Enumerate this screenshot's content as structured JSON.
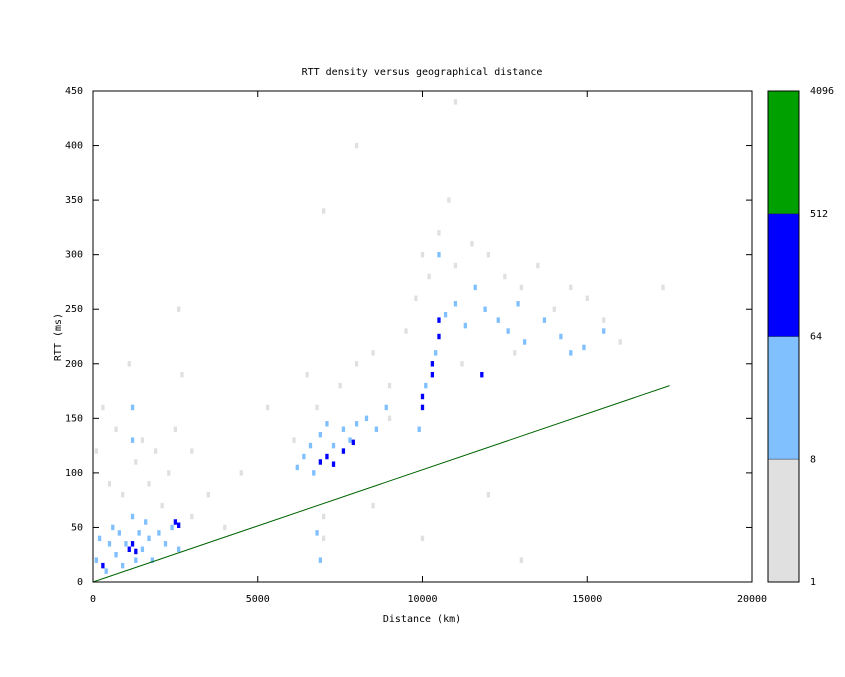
{
  "chart_data": {
    "type": "heatmap",
    "title": "RTT density versus geographical distance",
    "x_label": "Distance (km)",
    "y_label": "RTT (ms)",
    "xlim": [
      0,
      20000
    ],
    "xticks": [
      0,
      5000,
      10000,
      15000,
      20000
    ],
    "ylim": [
      0,
      450
    ],
    "yticks": [
      0,
      50,
      100,
      150,
      200,
      250,
      300,
      350,
      400,
      450
    ],
    "colorbar": {
      "log_scale": true,
      "lim": [
        1,
        4096
      ],
      "ticks": [
        1,
        8,
        64,
        512,
        4096
      ],
      "colors": [
        "#e0e0e0",
        "#80c0ff",
        "#0000ff",
        "#00a000"
      ]
    },
    "cells": {
      "x": [
        100,
        300,
        500,
        700,
        900,
        1100,
        1200,
        1300,
        1500,
        1700,
        1900,
        2100,
        2300,
        2500,
        2600,
        2700,
        3000,
        3500,
        4000,
        4500,
        3000,
        5300,
        6100,
        6500,
        7000,
        7000,
        6800,
        7500,
        8000,
        8500,
        9000,
        9500,
        9000,
        9800,
        10000,
        10200,
        10500,
        10800,
        11000,
        11500,
        12000,
        12500,
        13000,
        13500,
        14000,
        14500,
        15000,
        15500,
        16000,
        17300,
        11200,
        12800,
        8500,
        10000,
        12000,
        13000,
        7000,
        8000,
        11000,
        100,
        200,
        400,
        500,
        600,
        700,
        800,
        900,
        1000,
        1200,
        1300,
        1400,
        1500,
        1600,
        1700,
        1800,
        2000,
        2200,
        2400,
        2600,
        1200,
        1200,
        6200,
        6400,
        6600,
        6700,
        6900,
        7100,
        7300,
        7600,
        7800,
        8000,
        8300,
        8600,
        8900,
        6900,
        6800,
        9900,
        10100,
        10400,
        10700,
        11000,
        11300,
        11600,
        11900,
        12300,
        12600,
        12900,
        13100,
        13700,
        14200,
        14500,
        14900,
        15500,
        10500,
        300,
        1100,
        1200,
        1300,
        2500,
        2600,
        6900,
        7100,
        7300,
        7600,
        7900,
        10000,
        10000,
        10300,
        10300,
        10500,
        10500,
        11800
      ],
      "y": [
        120,
        160,
        90,
        140,
        80,
        200,
        160,
        110,
        130,
        90,
        120,
        70,
        100,
        140,
        250,
        190,
        60,
        80,
        50,
        100,
        120,
        160,
        130,
        190,
        40,
        60,
        160,
        180,
        200,
        210,
        180,
        230,
        150,
        260,
        300,
        280,
        320,
        350,
        290,
        310,
        300,
        280,
        270,
        290,
        250,
        270,
        260,
        240,
        220,
        270,
        200,
        210,
        70,
        40,
        80,
        20,
        340,
        400,
        440,
        20,
        40,
        10,
        35,
        50,
        25,
        45,
        15,
        35,
        60,
        20,
        45,
        30,
        55,
        40,
        20,
        45,
        35,
        50,
        30,
        130,
        160,
        105,
        115,
        125,
        100,
        135,
        145,
        125,
        140,
        130,
        145,
        150,
        140,
        160,
        20,
        45,
        140,
        180,
        210,
        245,
        255,
        235,
        270,
        250,
        240,
        230,
        255,
        220,
        240,
        225,
        210,
        215,
        230,
        300,
        15,
        30,
        35,
        28,
        55,
        52,
        110,
        115,
        108,
        120,
        128,
        160,
        170,
        200,
        190,
        240,
        225,
        190
      ],
      "count": [
        3,
        2,
        4,
        3,
        5,
        2,
        4,
        5,
        3,
        4,
        3,
        5,
        4,
        3,
        2,
        2,
        4,
        3,
        3,
        2,
        2,
        3,
        4,
        3,
        3,
        4,
        5,
        4,
        5,
        4,
        5,
        3,
        6,
        3,
        4,
        5,
        3,
        2,
        5,
        4,
        5,
        4,
        5,
        3,
        4,
        3,
        4,
        3,
        2,
        2,
        4,
        3,
        2,
        2,
        2,
        2,
        2,
        2,
        2,
        15,
        20,
        25,
        30,
        20,
        35,
        40,
        30,
        45,
        30,
        50,
        40,
        35,
        30,
        25,
        20,
        25,
        20,
        30,
        15,
        12,
        10,
        20,
        30,
        35,
        40,
        30,
        25,
        40,
        35,
        30,
        25,
        20,
        20,
        15,
        12,
        10,
        20,
        25,
        30,
        25,
        30,
        25,
        20,
        25,
        30,
        25,
        20,
        15,
        20,
        15,
        15,
        20,
        15,
        12,
        150,
        300,
        250,
        200,
        180,
        120,
        200,
        250,
        180,
        150,
        120,
        300,
        250,
        220,
        180,
        200,
        150,
        120
      ]
    },
    "series": [
      {
        "color": "#006400",
        "x": [
          0,
          17500
        ],
        "y": [
          0,
          180
        ]
      }
    ]
  }
}
